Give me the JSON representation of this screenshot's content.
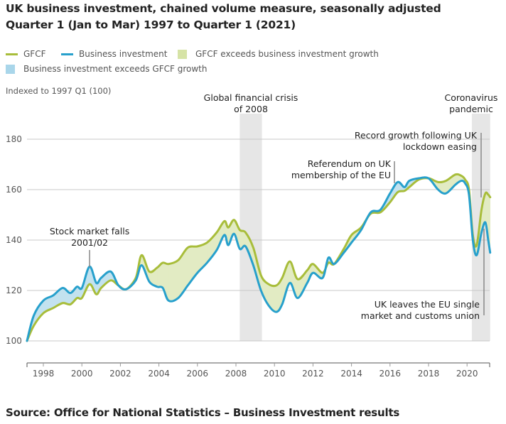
{
  "header": {
    "title_line1": "UK business investment, chained volume measure, seasonally adjusted",
    "title_line2": "Quarter 1 (Jan to Mar) 1997 to Quarter 1 (2021)"
  },
  "legend": {
    "items": [
      {
        "label": "GFCF",
        "kind": "line",
        "color": "#a8bd3a"
      },
      {
        "label": "Business investment",
        "kind": "line",
        "color": "#27a0cc"
      },
      {
        "label": "GFCF exceeds business investment growth",
        "kind": "area",
        "color": "#dfe8bd"
      },
      {
        "label": "Business investment exceeds GFCF growth",
        "kind": "area",
        "color": "#bfe0ee"
      }
    ]
  },
  "source": "Source: Office for National Statistics – Business Investment results",
  "chart_data": {
    "type": "line",
    "title": "UK business investment, chained volume measure, seasonally adjusted",
    "subtitle": "Quarter 1 (Jan to Mar) 1997 to Quarter 1 (2021)",
    "xlabel": "",
    "ylabel": "Indexed to 1997 Q1 (100)",
    "ylim": [
      100,
      180
    ],
    "xlim": [
      1997,
      2021.25
    ],
    "yticks": [
      100,
      120,
      140,
      160,
      180
    ],
    "xticks": [
      "1998",
      "2000",
      "2002",
      "2004",
      "2006",
      "2008",
      "2010",
      "2012",
      "2014",
      "2016",
      "2018",
      "2020"
    ],
    "grid": true,
    "legend_position": "top-left",
    "x": [
      1997.15,
      1997.5,
      1998.0,
      1998.5,
      1999.0,
      1999.4,
      1999.75,
      2000.0,
      2000.4,
      2000.75,
      2001.0,
      2001.5,
      2001.9,
      2002.3,
      2002.8,
      2003.1,
      2003.5,
      2003.9,
      2004.2,
      2004.5,
      2005.0,
      2005.5,
      2006.0,
      2006.5,
      2007.0,
      2007.4,
      2007.6,
      2007.9,
      2008.2,
      2008.5,
      2008.9,
      2009.3,
      2009.7,
      2010.1,
      2010.4,
      2010.8,
      2011.2,
      2011.7,
      2012.0,
      2012.5,
      2012.8,
      2013.1,
      2013.6,
      2014.0,
      2014.5,
      2015.0,
      2015.5,
      2016.0,
      2016.4,
      2016.75,
      2017.0,
      2017.5,
      2018.0,
      2018.5,
      2018.9,
      2019.4,
      2019.7,
      2019.9,
      2020.1,
      2020.3,
      2020.5,
      2020.75,
      2020.95,
      2021.1,
      2021.2
    ],
    "series": [
      {
        "name": "GFCF",
        "color": "#a8bd3a",
        "values": [
          100,
          106,
          111,
          113,
          115,
          114.5,
          117,
          117,
          122.5,
          118.5,
          121,
          124,
          122,
          120.5,
          125,
          134,
          127.5,
          129,
          131,
          130.5,
          132,
          137,
          137.5,
          139,
          143,
          147.5,
          145,
          148,
          144,
          143,
          137,
          126,
          122.5,
          122,
          125,
          131.5,
          124.5,
          128,
          130.5,
          127,
          131,
          130.5,
          136.5,
          142,
          145,
          150.5,
          151,
          155,
          159,
          159.5,
          161,
          164,
          164.5,
          163,
          163.5,
          166,
          165.5,
          164,
          160,
          142,
          138,
          152,
          158.5,
          158,
          157
        ]
      },
      {
        "name": "Business investment",
        "color": "#27a0cc",
        "values": [
          100,
          110,
          116,
          118,
          121,
          119,
          121.5,
          121,
          129.5,
          123,
          125,
          127.5,
          122,
          120.5,
          124,
          130,
          123.5,
          121.5,
          121,
          116,
          117,
          122,
          127,
          131,
          136,
          142,
          138,
          142.5,
          136.5,
          137.5,
          130,
          120,
          114,
          111.5,
          114.5,
          123,
          117,
          123,
          127,
          125,
          133,
          130.5,
          135,
          139,
          144,
          151,
          152,
          158.5,
          163,
          161,
          163.5,
          164.5,
          164.5,
          160,
          158.5,
          162,
          163.5,
          162.5,
          158,
          140,
          134,
          143,
          147,
          140,
          135
        ]
      }
    ],
    "shaded_periods": [
      {
        "label": "Global financial crisis of 2008",
        "start": 2008.2,
        "end": 2009.35
      },
      {
        "label": "Coronavirus pandemic",
        "start": 2020.25,
        "end": 2021.2
      }
    ],
    "annotations": [
      {
        "text_lines": [
          "Global financial crisis",
          "of 2008"
        ]
      },
      {
        "text_lines": [
          "Coronavirus",
          "pandemic"
        ]
      },
      {
        "text_lines": [
          "Stock market falls",
          "2001/02"
        ],
        "x": 2000.4
      },
      {
        "text_lines": [
          "Referendum on UK",
          "membership of the EU"
        ],
        "x": 2016.4
      },
      {
        "text_lines": [
          "Record growth following UK",
          "lockdown easing"
        ],
        "x": 2020.75
      },
      {
        "text_lines": [
          "UK leaves the EU single",
          "market and customs union"
        ],
        "x": 2021.0
      }
    ]
  }
}
